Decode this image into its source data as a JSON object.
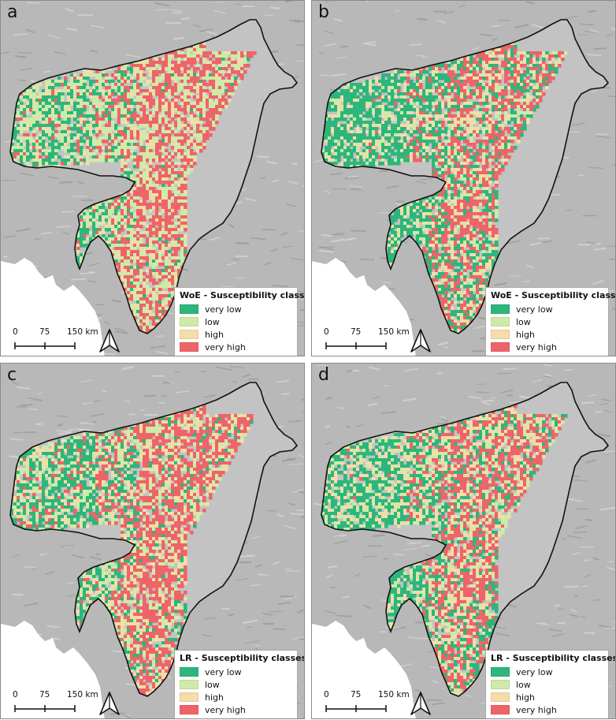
{
  "colors": {
    "very_low": "#2db67b",
    "low": "#cfeaa8",
    "high": "#f6dca8",
    "very_high": "#ee6468",
    "terrain": "#b8b8b8",
    "water": "#ffffff",
    "inside": "#c3c3c3",
    "boundary": "#111111"
  },
  "icons": {
    "north_arrow": "north-arrow-icon"
  },
  "panels": [
    {
      "letter": "a",
      "legend_title": "WoE - Susceptibility classes",
      "mix": [
        0.22,
        0.38,
        0.1,
        0.3
      ],
      "legend": [
        {
          "label": "very low",
          "color": "#2db67b"
        },
        {
          "label": "low",
          "color": "#cfeaa8"
        },
        {
          "label": "high",
          "color": "#f6dca8"
        },
        {
          "label": "very high",
          "color": "#ee6468"
        }
      ],
      "scale": {
        "labels": [
          "0",
          "75",
          "150 km"
        ]
      }
    },
    {
      "letter": "b",
      "legend_title": "WoE - Susceptibility classes",
      "mix": [
        0.48,
        0.16,
        0.16,
        0.2
      ],
      "legend": [
        {
          "label": "very low",
          "color": "#2db67b"
        },
        {
          "label": "low",
          "color": "#cfeaa8"
        },
        {
          "label": "high",
          "color": "#f6dca8"
        },
        {
          "label": "very high",
          "color": "#ee6468"
        }
      ],
      "scale": {
        "labels": [
          "0",
          "75",
          "150 km"
        ]
      }
    },
    {
      "letter": "c",
      "legend_title": "LR - Susceptibility classes",
      "mix": [
        0.3,
        0.22,
        0.16,
        0.32
      ],
      "legend": [
        {
          "label": "very low",
          "color": "#2db67b"
        },
        {
          "label": "low",
          "color": "#cfeaa8"
        },
        {
          "label": "high",
          "color": "#f6dca8"
        },
        {
          "label": "very high",
          "color": "#ee6468"
        }
      ],
      "scale": {
        "labels": [
          "0",
          "75",
          "150 km"
        ]
      }
    },
    {
      "letter": "d",
      "legend_title": "LR - Susceptibility classes",
      "mix": [
        0.42,
        0.18,
        0.2,
        0.2
      ],
      "legend": [
        {
          "label": "very low",
          "color": "#2db67b"
        },
        {
          "label": "low",
          "color": "#cfeaa8"
        },
        {
          "label": "high",
          "color": "#f6dca8"
        },
        {
          "label": "very high",
          "color": "#ee6468"
        }
      ],
      "scale": {
        "labels": [
          "0",
          "75",
          "150 km"
        ]
      }
    }
  ]
}
